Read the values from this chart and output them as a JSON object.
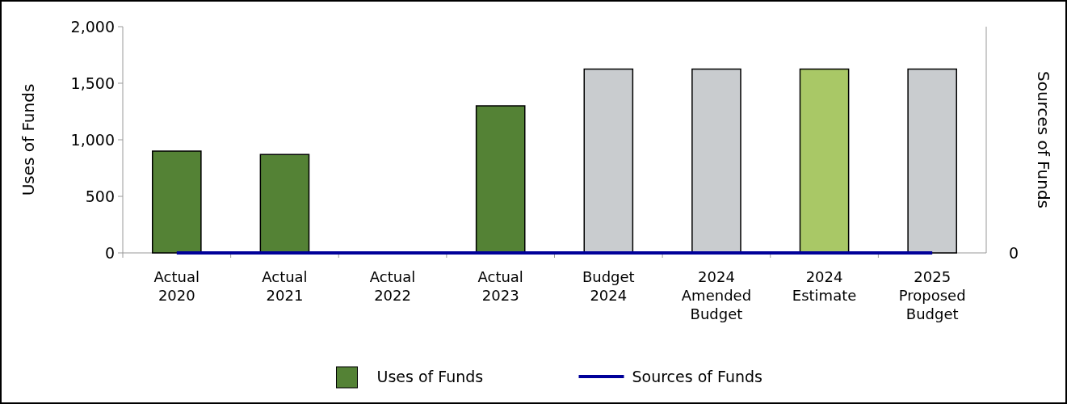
{
  "chart_data": {
    "type": "bar",
    "ylabel": "Uses of Funds",
    "y2label": "Sources of Funds",
    "categories": [
      "Actual 2020",
      "Actual 2021",
      "Actual 2022",
      "Actual 2023",
      "Budget 2024",
      "2024 Amended Budget",
      "2024 Estimate",
      "2025 Proposed Budget"
    ],
    "series": [
      {
        "name": "Uses of Funds",
        "color": "#548235",
        "colors": [
          "#548235",
          "#548235",
          "#548235",
          "#548235",
          "#c9cccf",
          "#c9cccf",
          "#a9c866",
          "#c9cccf"
        ],
        "values": [
          900,
          870,
          0,
          1300,
          1625,
          1625,
          1625,
          1625
        ]
      },
      {
        "name": "Sources of Funds",
        "type": "line",
        "color": "#000099",
        "values": [
          0,
          0,
          0,
          0,
          0,
          0,
          0,
          0
        ]
      }
    ],
    "ylim": [
      0,
      2000
    ],
    "yticks": [
      0,
      500,
      {
        "value": 1000,
        "label": "1,000"
      },
      {
        "value": 1500,
        "label": "1,500"
      },
      {
        "value": 2000,
        "label": "2,000"
      }
    ],
    "annotations": [
      "0"
    ],
    "grid": false,
    "legend": "bottom",
    "marker": "none",
    "line_style": "solid"
  }
}
